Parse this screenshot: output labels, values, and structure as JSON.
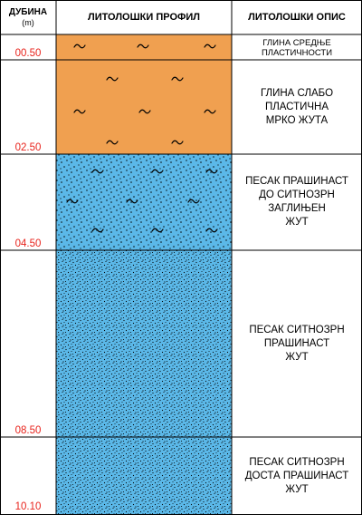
{
  "header": {
    "depth_title": "ДУБИНА",
    "depth_unit": "(m)",
    "profile_title": "ЛИТОЛОШКИ ПРОФИЛ",
    "description_title": "ЛИТОЛОШКИ ОПИС"
  },
  "colors": {
    "clay": "#f0a050",
    "sand": "#5bb8e8",
    "depth_text": "#e8231c",
    "grid": "#000000"
  },
  "layers": [
    {
      "bottom_depth": "00.50",
      "lithology": "clay",
      "description": [
        "ГЛИНА СРЕДЊЕ",
        "ПЛАСТИЧНОСТИ"
      ]
    },
    {
      "bottom_depth": "02.50",
      "lithology": "clay",
      "description": [
        "ГЛИНА СЛАБО",
        "ПЛАСТИЧНА",
        "МРКО ЖУТА"
      ]
    },
    {
      "bottom_depth": "04.50",
      "lithology": "sand",
      "description": [
        "ПЕСАК ПРАШИНАСТ",
        "ДО СИТНОЗРН",
        "ЗАГЛИЊЕН",
        "ЖУТ"
      ]
    },
    {
      "bottom_depth": "08.50",
      "lithology": "sand",
      "description": [
        "ПЕСАК СИТНОЗРН",
        "ПРАШИНАСТ",
        "ЖУТ"
      ]
    },
    {
      "bottom_depth": "10.10",
      "lithology": "sand",
      "description": [
        "ПЕСАК СИТНОЗРН",
        "ДОСТА ПРАШИНАСТ",
        "ЖУТ"
      ]
    }
  ]
}
